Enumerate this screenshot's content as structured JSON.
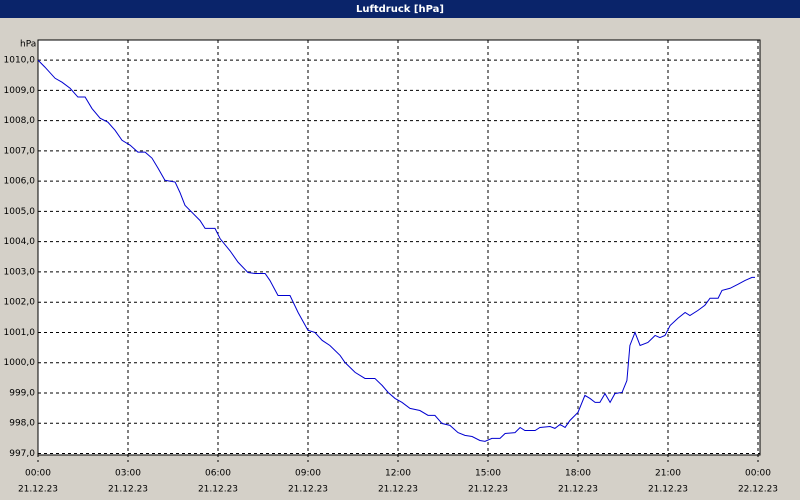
{
  "chart_data": {
    "type": "line",
    "title": "Luftdruck [hPa]",
    "y_unit": "hPa",
    "x": [
      0,
      0.23,
      0.57,
      0.8,
      1.07,
      1.33,
      1.57,
      1.8,
      2.07,
      2.33,
      2.57,
      2.8,
      3.07,
      3.33,
      3.57,
      3.8,
      4.0,
      4.23,
      4.57,
      4.73,
      4.9,
      5.13,
      5.4,
      5.57,
      5.9,
      6.07,
      6.4,
      6.67,
      7.0,
      7.23,
      7.57,
      7.73,
      8.0,
      8.4,
      8.67,
      9.0,
      9.23,
      9.47,
      9.73,
      10.07,
      10.23,
      10.57,
      10.9,
      11.23,
      11.47,
      11.67,
      11.9,
      12.13,
      12.4,
      12.73,
      13.0,
      13.23,
      13.47,
      13.73,
      14.0,
      14.23,
      14.47,
      14.73,
      14.9,
      15.13,
      15.4,
      15.57,
      15.9,
      16.07,
      16.23,
      16.57,
      16.73,
      17.07,
      17.23,
      17.4,
      17.57,
      17.73,
      18.0,
      18.23,
      18.4,
      18.57,
      18.73,
      18.9,
      19.07,
      19.23,
      19.47,
      19.63,
      19.73,
      19.9,
      20.07,
      20.33,
      20.57,
      20.73,
      20.9,
      21.07,
      21.33,
      21.57,
      21.73,
      22.0,
      22.23,
      22.4,
      22.67,
      22.8,
      23.07,
      23.33,
      23.57,
      23.8,
      23.9
    ],
    "series": [
      {
        "name": "Luftdruck",
        "color": "#0000d0",
        "values": [
          1010.0,
          1009.77,
          1009.4,
          1009.27,
          1009.07,
          1008.78,
          1008.78,
          1008.4,
          1008.08,
          1007.95,
          1007.68,
          1007.35,
          1007.19,
          1006.96,
          1006.96,
          1006.76,
          1006.43,
          1006.03,
          1005.97,
          1005.63,
          1005.2,
          1004.97,
          1004.7,
          1004.44,
          1004.44,
          1004.1,
          1003.7,
          1003.32,
          1002.98,
          1002.95,
          1002.95,
          1002.72,
          1002.22,
          1002.22,
          1001.66,
          1001.07,
          1001.0,
          1000.74,
          1000.57,
          1000.24,
          1000.01,
          999.68,
          999.48,
          999.48,
          999.25,
          999.02,
          998.82,
          998.69,
          998.49,
          998.42,
          998.26,
          998.26,
          997.99,
          997.93,
          997.69,
          997.6,
          997.56,
          997.43,
          997.4,
          997.5,
          997.5,
          997.66,
          997.69,
          997.86,
          997.76,
          997.76,
          997.86,
          997.89,
          997.83,
          997.96,
          997.86,
          998.09,
          998.36,
          998.92,
          998.82,
          998.69,
          998.69,
          998.98,
          998.69,
          998.98,
          999.02,
          999.41,
          1000.57,
          1001.0,
          1000.57,
          1000.67,
          1000.9,
          1000.83,
          1000.9,
          1001.23,
          1001.47,
          1001.66,
          1001.56,
          1001.73,
          1001.9,
          1002.13,
          1002.13,
          1002.39,
          1002.46,
          1002.59,
          1002.72,
          1002.82,
          1002.82
        ]
      }
    ],
    "xlim": [
      0,
      24
    ],
    "ylim": [
      996.95,
      1010.5
    ],
    "xticks": [
      {
        "value": 0,
        "label": "00:00"
      },
      {
        "value": 3,
        "label": "03:00"
      },
      {
        "value": 6,
        "label": "06:00"
      },
      {
        "value": 9,
        "label": "09:00"
      },
      {
        "value": 12,
        "label": "12:00"
      },
      {
        "value": 15,
        "label": "15:00"
      },
      {
        "value": 18,
        "label": "18:00"
      },
      {
        "value": 21,
        "label": "21:00"
      },
      {
        "value": 24,
        "label": "00:00"
      }
    ],
    "xtick_dates": [
      "21.12.23",
      "21.12.23",
      "21.12.23",
      "21.12.23",
      "21.12.23",
      "21.12.23",
      "21.12.23",
      "21.12.23",
      "22.12.23"
    ],
    "yticks": [
      {
        "value": 997,
        "label": "997,0"
      },
      {
        "value": 998,
        "label": "998,0"
      },
      {
        "value": 999,
        "label": "999,0"
      },
      {
        "value": 1000,
        "label": "1000,0"
      },
      {
        "value": 1001,
        "label": "1001,0"
      },
      {
        "value": 1002,
        "label": "1002,0"
      },
      {
        "value": 1003,
        "label": "1003,0"
      },
      {
        "value": 1004,
        "label": "1004,0"
      },
      {
        "value": 1005,
        "label": "1005,0"
      },
      {
        "value": 1006,
        "label": "1006,0"
      },
      {
        "value": 1007,
        "label": "1007,0"
      },
      {
        "value": 1008,
        "label": "1008,0"
      },
      {
        "value": 1009,
        "label": "1009,0"
      },
      {
        "value": 1010,
        "label": "1010,0"
      }
    ],
    "grid": true
  }
}
